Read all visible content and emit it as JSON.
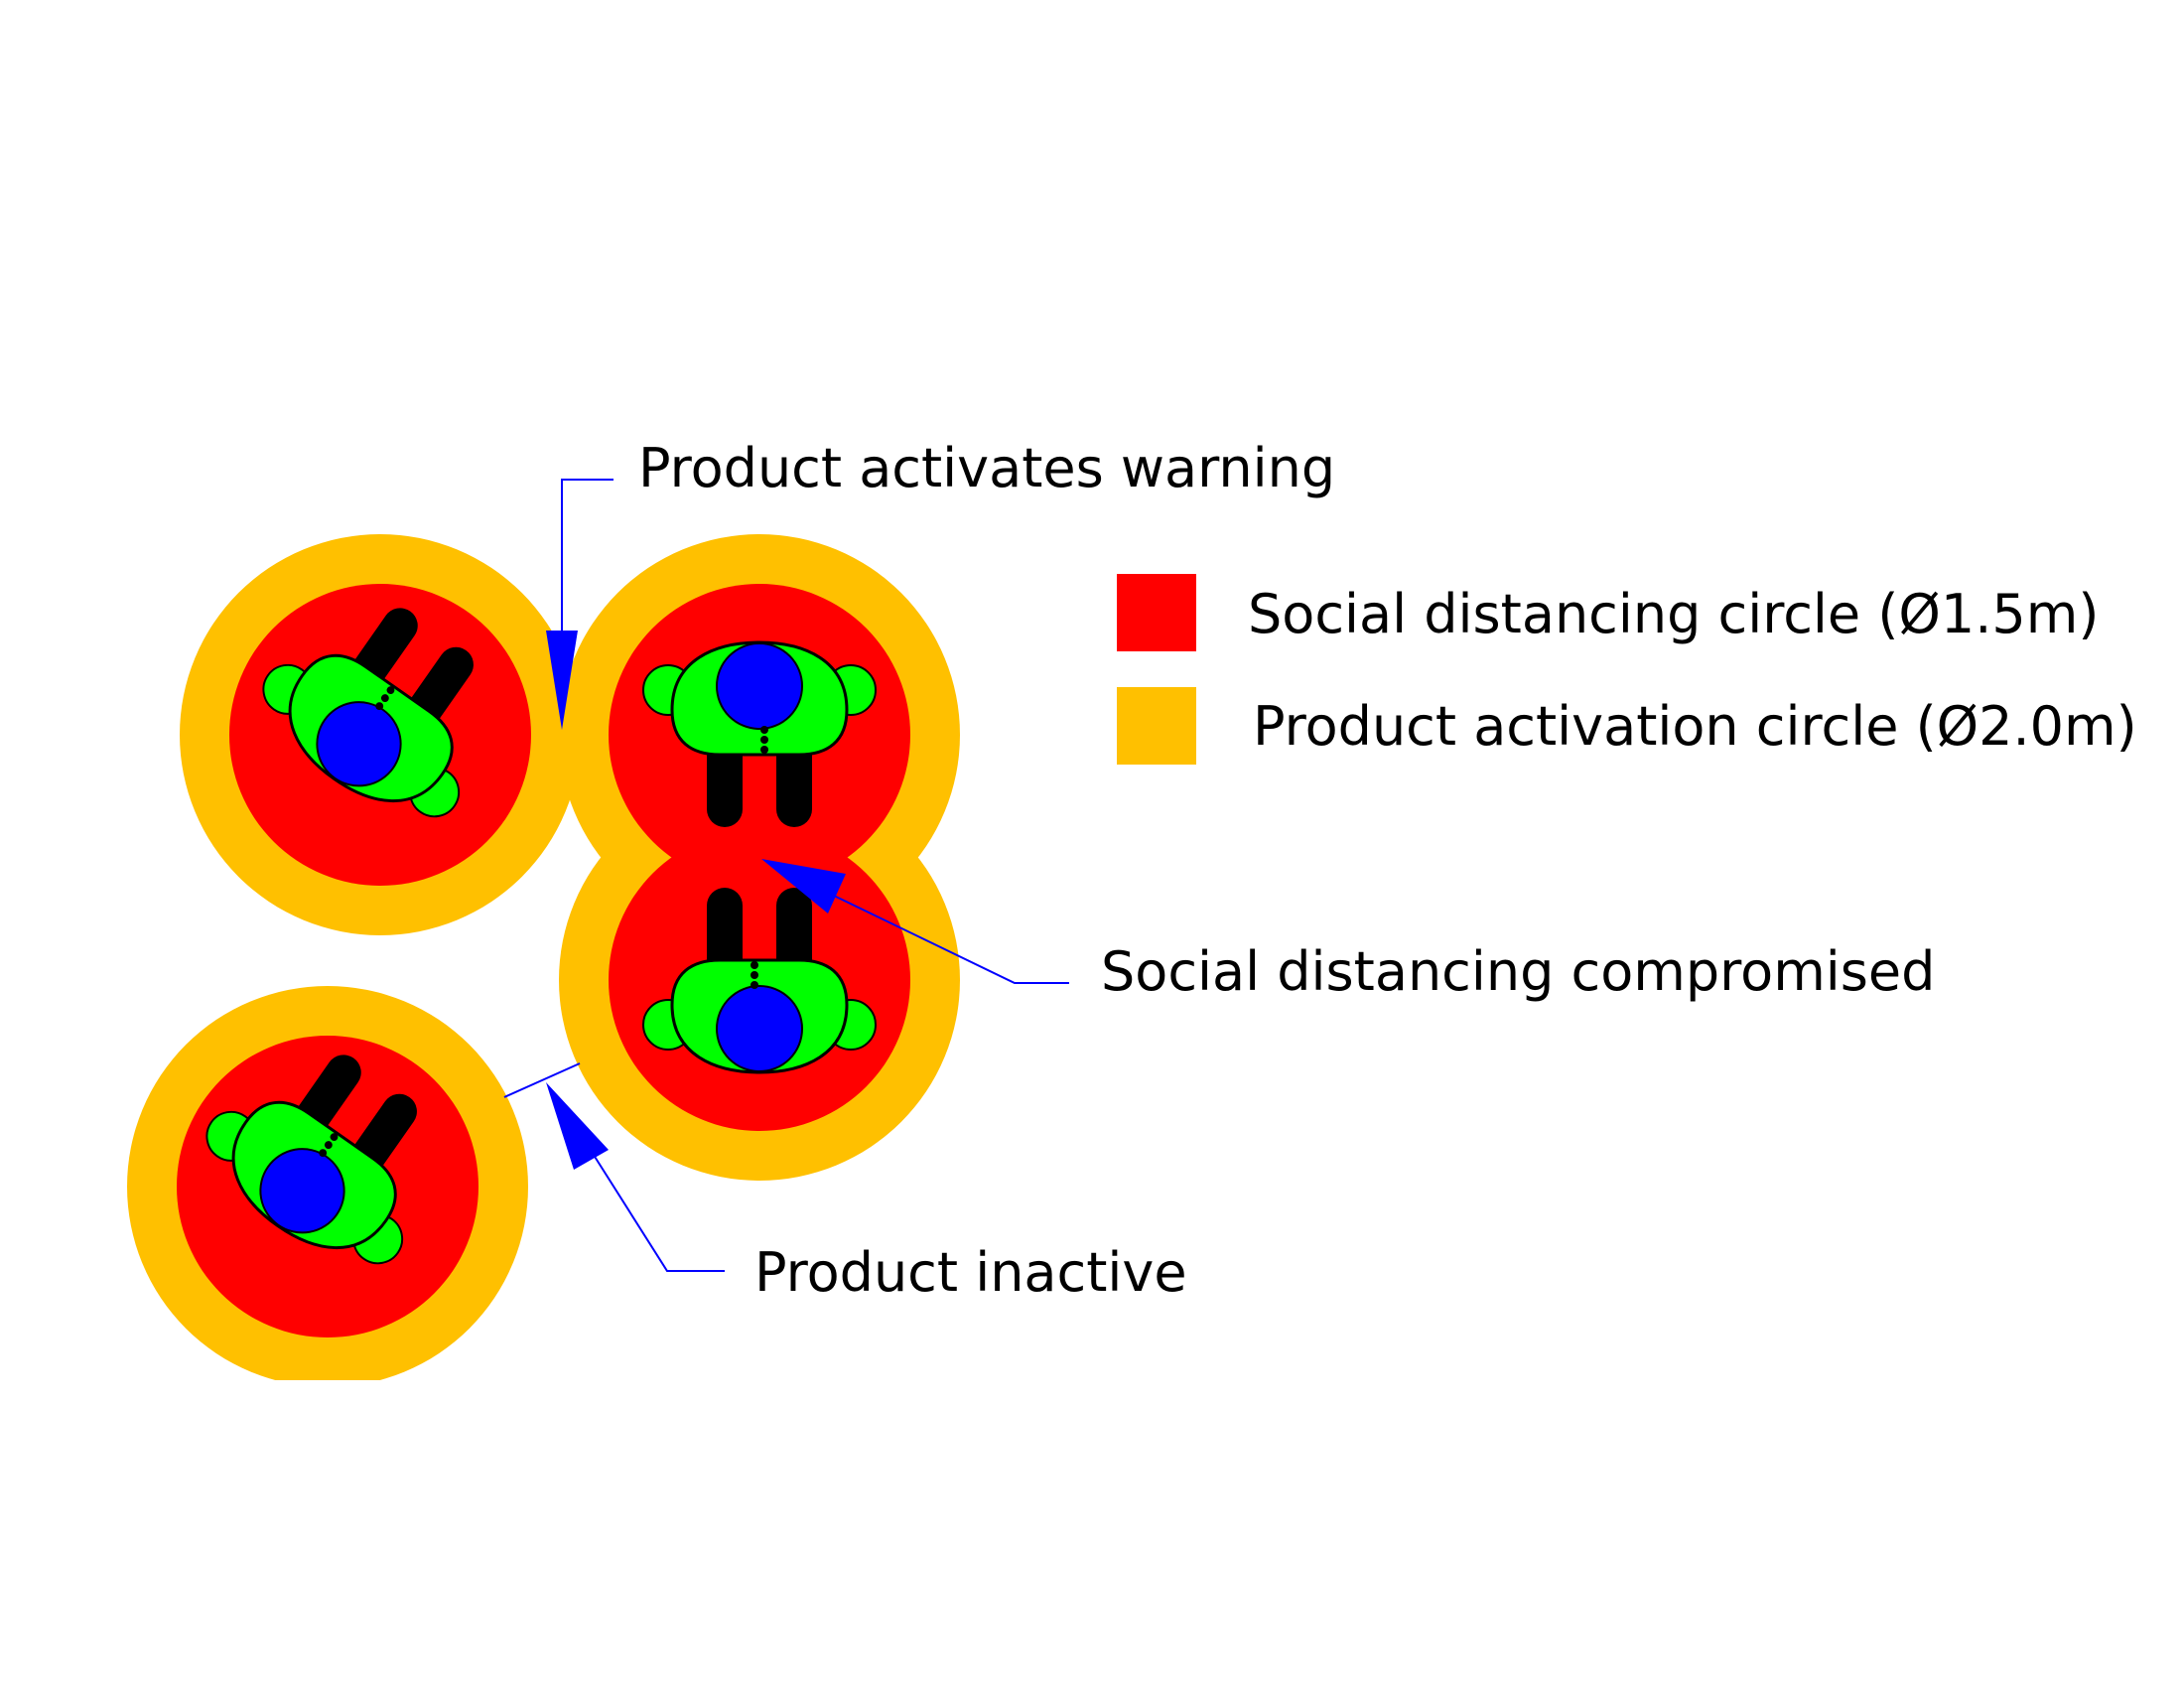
{
  "colors": {
    "background": "#ffffff",
    "activation_ring": "#ffc000",
    "distancing_circle": "#ff0000",
    "body": "#00ff00",
    "head": "#0000ff",
    "limbs": "#000000",
    "callout": "#0000ff"
  },
  "legend": {
    "distancing_label": "Social distancing circle (Ø1.5m)",
    "activation_label": "Product activation circle (Ø2.0m)"
  },
  "callouts": {
    "warning": "Product activates warning",
    "compromised": "Social distancing compromised",
    "inactive": "Product inactive"
  },
  "icons": {
    "person": "top-down-person-icon"
  }
}
